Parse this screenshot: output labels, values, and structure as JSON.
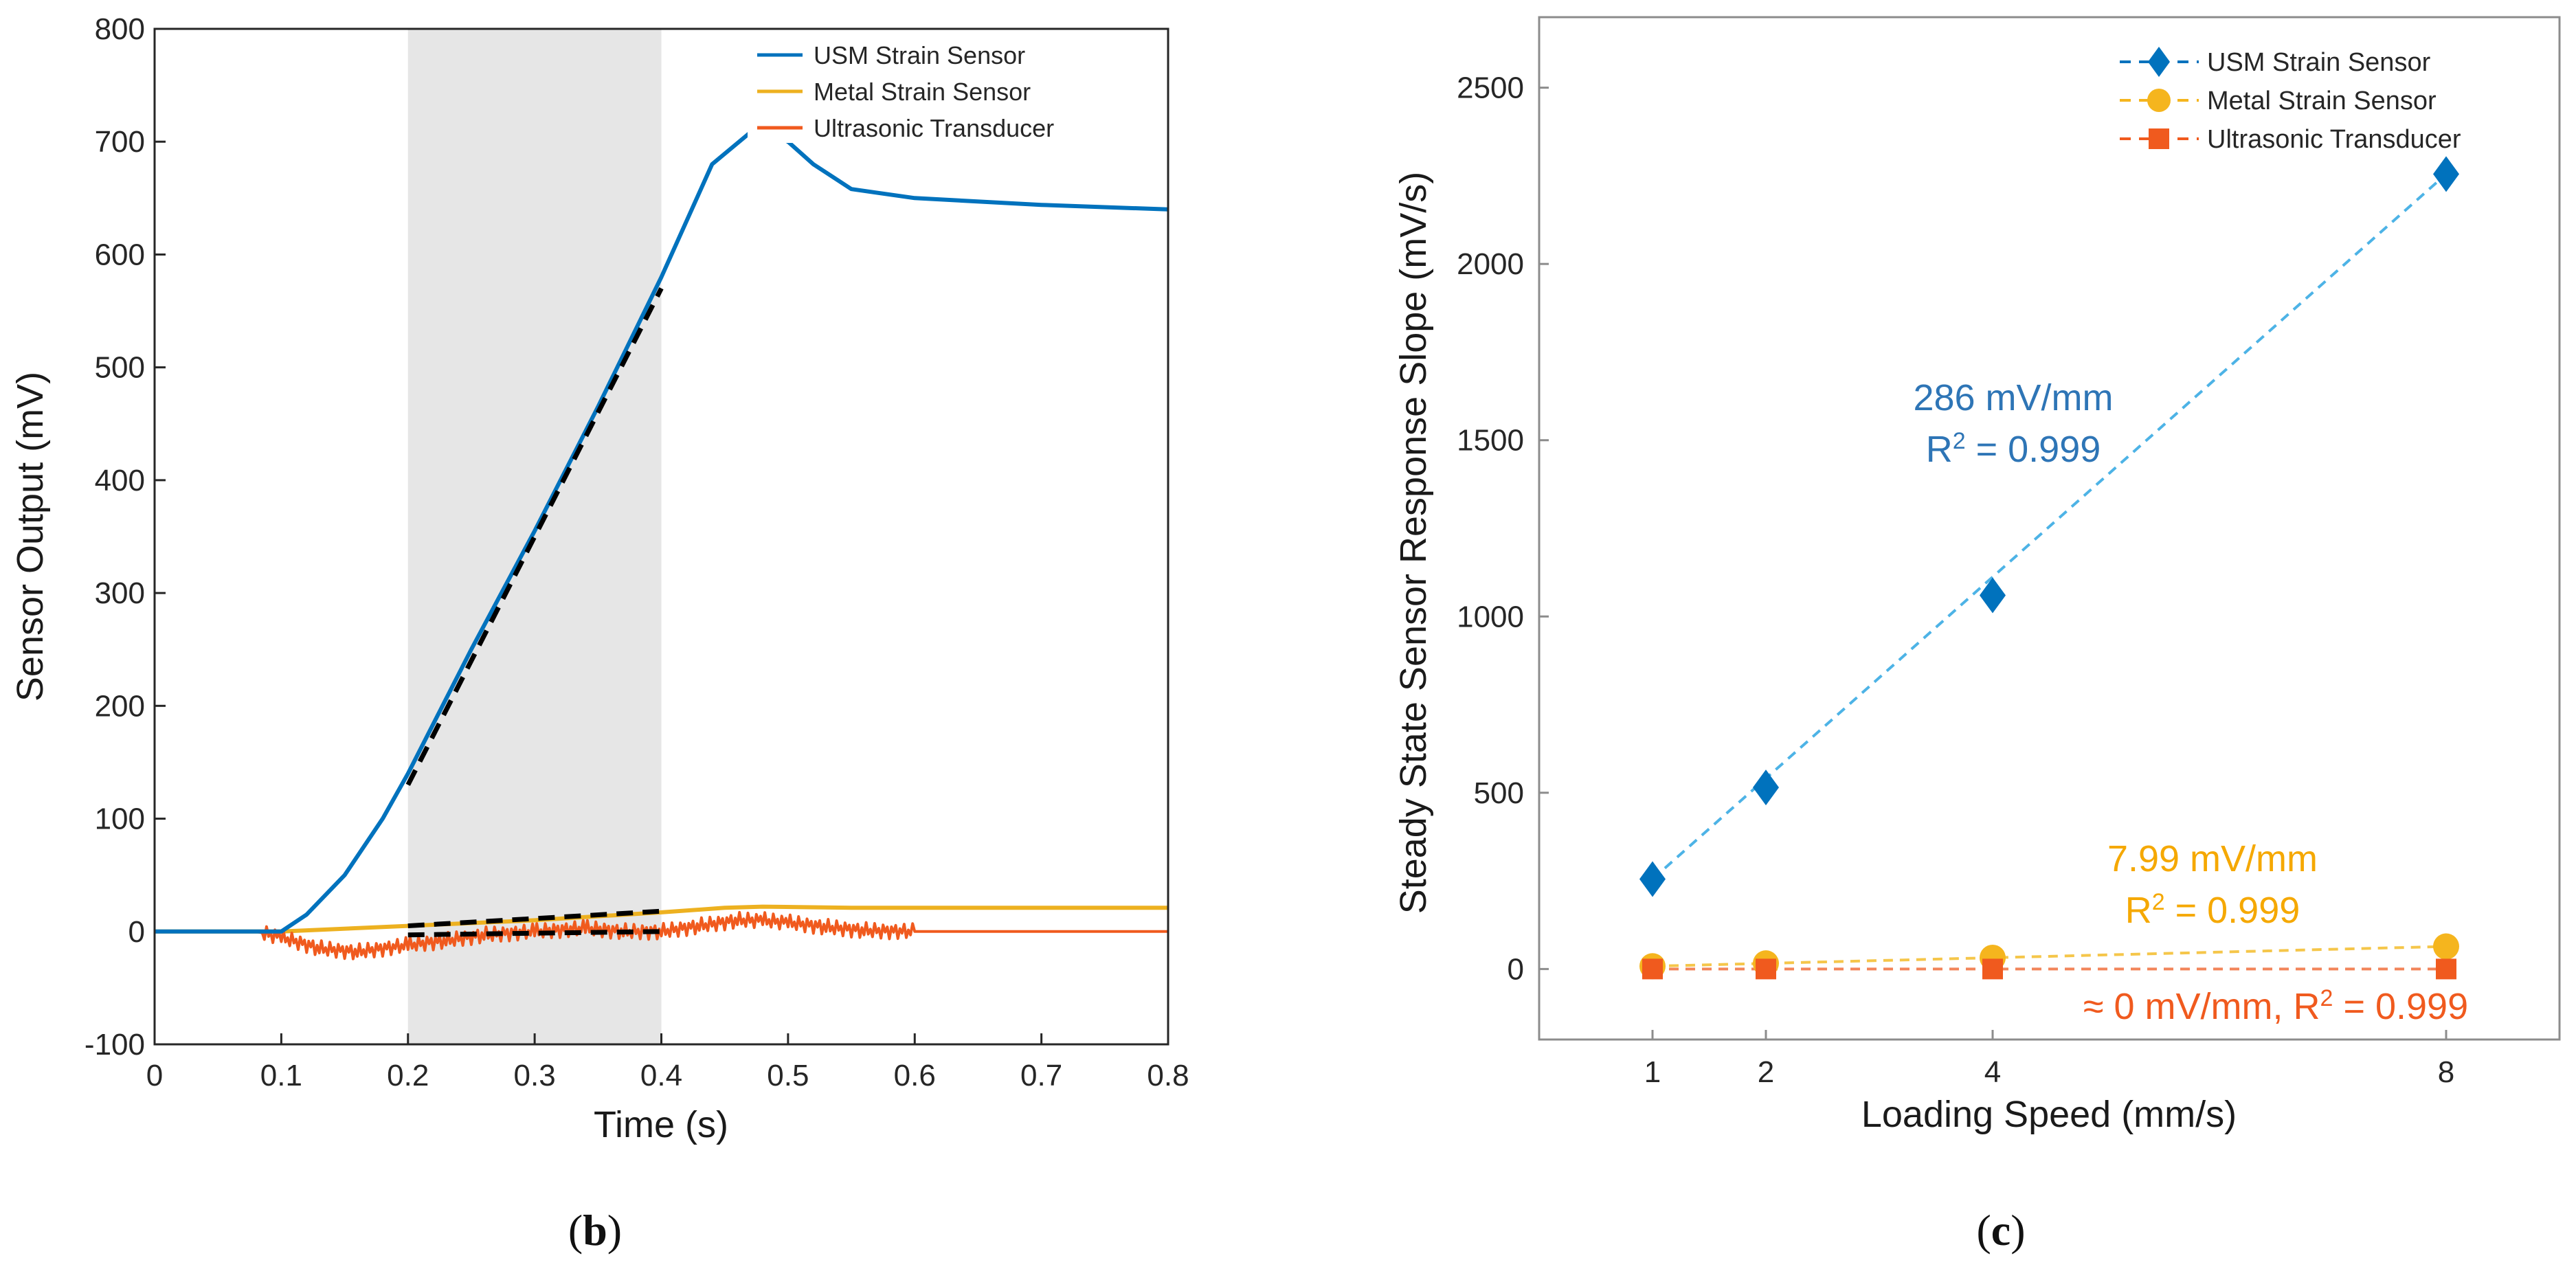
{
  "colors": {
    "usm": "#0072BD",
    "usm_fit": "#4DB3E6",
    "metal": "#EDB120",
    "metal_fit": "#F5C64A",
    "ultra": "#F05A1E",
    "ultra_fit": "#F2855A",
    "fit_black": "#000000",
    "shade": "#E6E6E6"
  },
  "chart_data": [
    {
      "panel": "b",
      "type": "line",
      "xlabel": "Time (s)",
      "ylabel": "Sensor Output (mV)",
      "xlim": [
        0,
        0.8
      ],
      "ylim": [
        -100,
        800
      ],
      "xticks": [
        0,
        0.1,
        0.2,
        0.3,
        0.4,
        0.5,
        0.6,
        0.7,
        0.8
      ],
      "yticks": [
        -100,
        0,
        100,
        200,
        300,
        400,
        500,
        600,
        700,
        800
      ],
      "shaded_region": [
        0.2,
        0.4
      ],
      "legend_position": "top-right",
      "series": [
        {
          "name": "USM Strain Sensor",
          "x": [
            0,
            0.1,
            0.12,
            0.15,
            0.18,
            0.2,
            0.25,
            0.3,
            0.35,
            0.4,
            0.44,
            0.47,
            0.48,
            0.5,
            0.52,
            0.55,
            0.6,
            0.7,
            0.8
          ],
          "y": [
            0,
            0,
            15,
            50,
            100,
            140,
            250,
            355,
            465,
            580,
            680,
            708,
            710,
            700,
            680,
            658,
            650,
            644,
            640
          ]
        },
        {
          "name": "Metal Strain Sensor",
          "x": [
            0,
            0.1,
            0.2,
            0.3,
            0.4,
            0.45,
            0.48,
            0.55,
            0.6,
            0.8
          ],
          "y": [
            0,
            0,
            5,
            10,
            17,
            21,
            22,
            21,
            21,
            21
          ]
        },
        {
          "name": "Ultrasonic Transducer",
          "x": [
            0,
            0.08,
            0.1,
            0.13,
            0.16,
            0.2,
            0.23,
            0.26,
            0.3,
            0.34,
            0.37,
            0.4,
            0.43,
            0.46,
            0.48,
            0.5,
            0.53,
            0.56,
            0.6,
            0.8
          ],
          "y": [
            0,
            0,
            -5,
            -15,
            -18,
            -12,
            -8,
            -3,
            0,
            3,
            0,
            0,
            5,
            10,
            10,
            8,
            4,
            1,
            0,
            0
          ]
        }
      ],
      "fit_lines": [
        {
          "x": [
            0.2,
            0.4
          ],
          "y": [
            130,
            570
          ]
        },
        {
          "x": [
            0.2,
            0.4
          ],
          "y": [
            5,
            18
          ]
        },
        {
          "x": [
            0.2,
            0.4
          ],
          "y": [
            -3,
            0
          ]
        }
      ]
    },
    {
      "panel": "c",
      "type": "scatter",
      "xlabel": "Loading Speed (mm/s)",
      "ylabel": "Steady State Sensor Response Slope (mV/s)",
      "xlim": [
        0,
        9
      ],
      "ylim": [
        -200,
        2700
      ],
      "xticks": [
        1,
        2,
        4,
        8
      ],
      "yticks": [
        0,
        500,
        1000,
        1500,
        2000,
        2500
      ],
      "legend_position": "top-right",
      "series": [
        {
          "name": "USM Strain Sensor",
          "marker": "diamond",
          "x": [
            1,
            2,
            4,
            8
          ],
          "y": [
            255,
            515,
            1060,
            2255
          ]
        },
        {
          "name": "Metal Strain Sensor",
          "marker": "circle",
          "x": [
            1,
            2,
            4,
            8
          ],
          "y": [
            8,
            16,
            32,
            64
          ]
        },
        {
          "name": "Ultrasonic Transducer",
          "marker": "square",
          "x": [
            1,
            2,
            4,
            8
          ],
          "y": [
            0,
            0,
            0,
            0
          ]
        }
      ],
      "fit_lines": [
        {
          "series": "USM Strain Sensor",
          "x": [
            1,
            8
          ],
          "y": [
            255,
            2255
          ]
        },
        {
          "series": "Metal Strain Sensor",
          "x": [
            1,
            8
          ],
          "y": [
            8,
            64
          ]
        },
        {
          "series": "Ultrasonic Transducer",
          "x": [
            1,
            8
          ],
          "y": [
            0,
            0
          ]
        }
      ],
      "annotations": [
        {
          "series": "USM Strain Sensor",
          "lines": [
            "286 mV/mm",
            "R2 = 0.999"
          ]
        },
        {
          "series": "Metal Strain Sensor",
          "lines": [
            "7.99 mV/mm",
            "R2 = 0.999"
          ]
        },
        {
          "series": "Ultrasonic Transducer",
          "lines": [
            "≈ 0 mV/mm, R2 = 0.999"
          ]
        }
      ]
    }
  ],
  "captions": {
    "b": {
      "open": "(",
      "letter": "b",
      "close": ")"
    },
    "c": {
      "open": "(",
      "letter": "c",
      "close": ")"
    }
  },
  "panel_b": {
    "legend": [
      "USM Strain Sensor",
      "Metal Strain Sensor",
      "Ultrasonic Transducer"
    ]
  },
  "panel_c": {
    "legend": [
      "USM Strain Sensor",
      "Metal Strain Sensor",
      "Ultrasonic Transducer"
    ],
    "ann_usm_slope": "286 mV/mm",
    "ann_usm_r2_prefix": "R",
    "ann_usm_r2_sup": "2",
    "ann_usm_r2_value": " = 0.999",
    "ann_metal_slope": "7.99 mV/mm",
    "ann_metal_r2_prefix": "R",
    "ann_metal_r2_sup": "2",
    "ann_metal_r2_value": " = 0.999",
    "ann_ultra_prefix": "≈ 0 mV/mm, R",
    "ann_ultra_sup": "2",
    "ann_ultra_value": " = 0.999"
  }
}
